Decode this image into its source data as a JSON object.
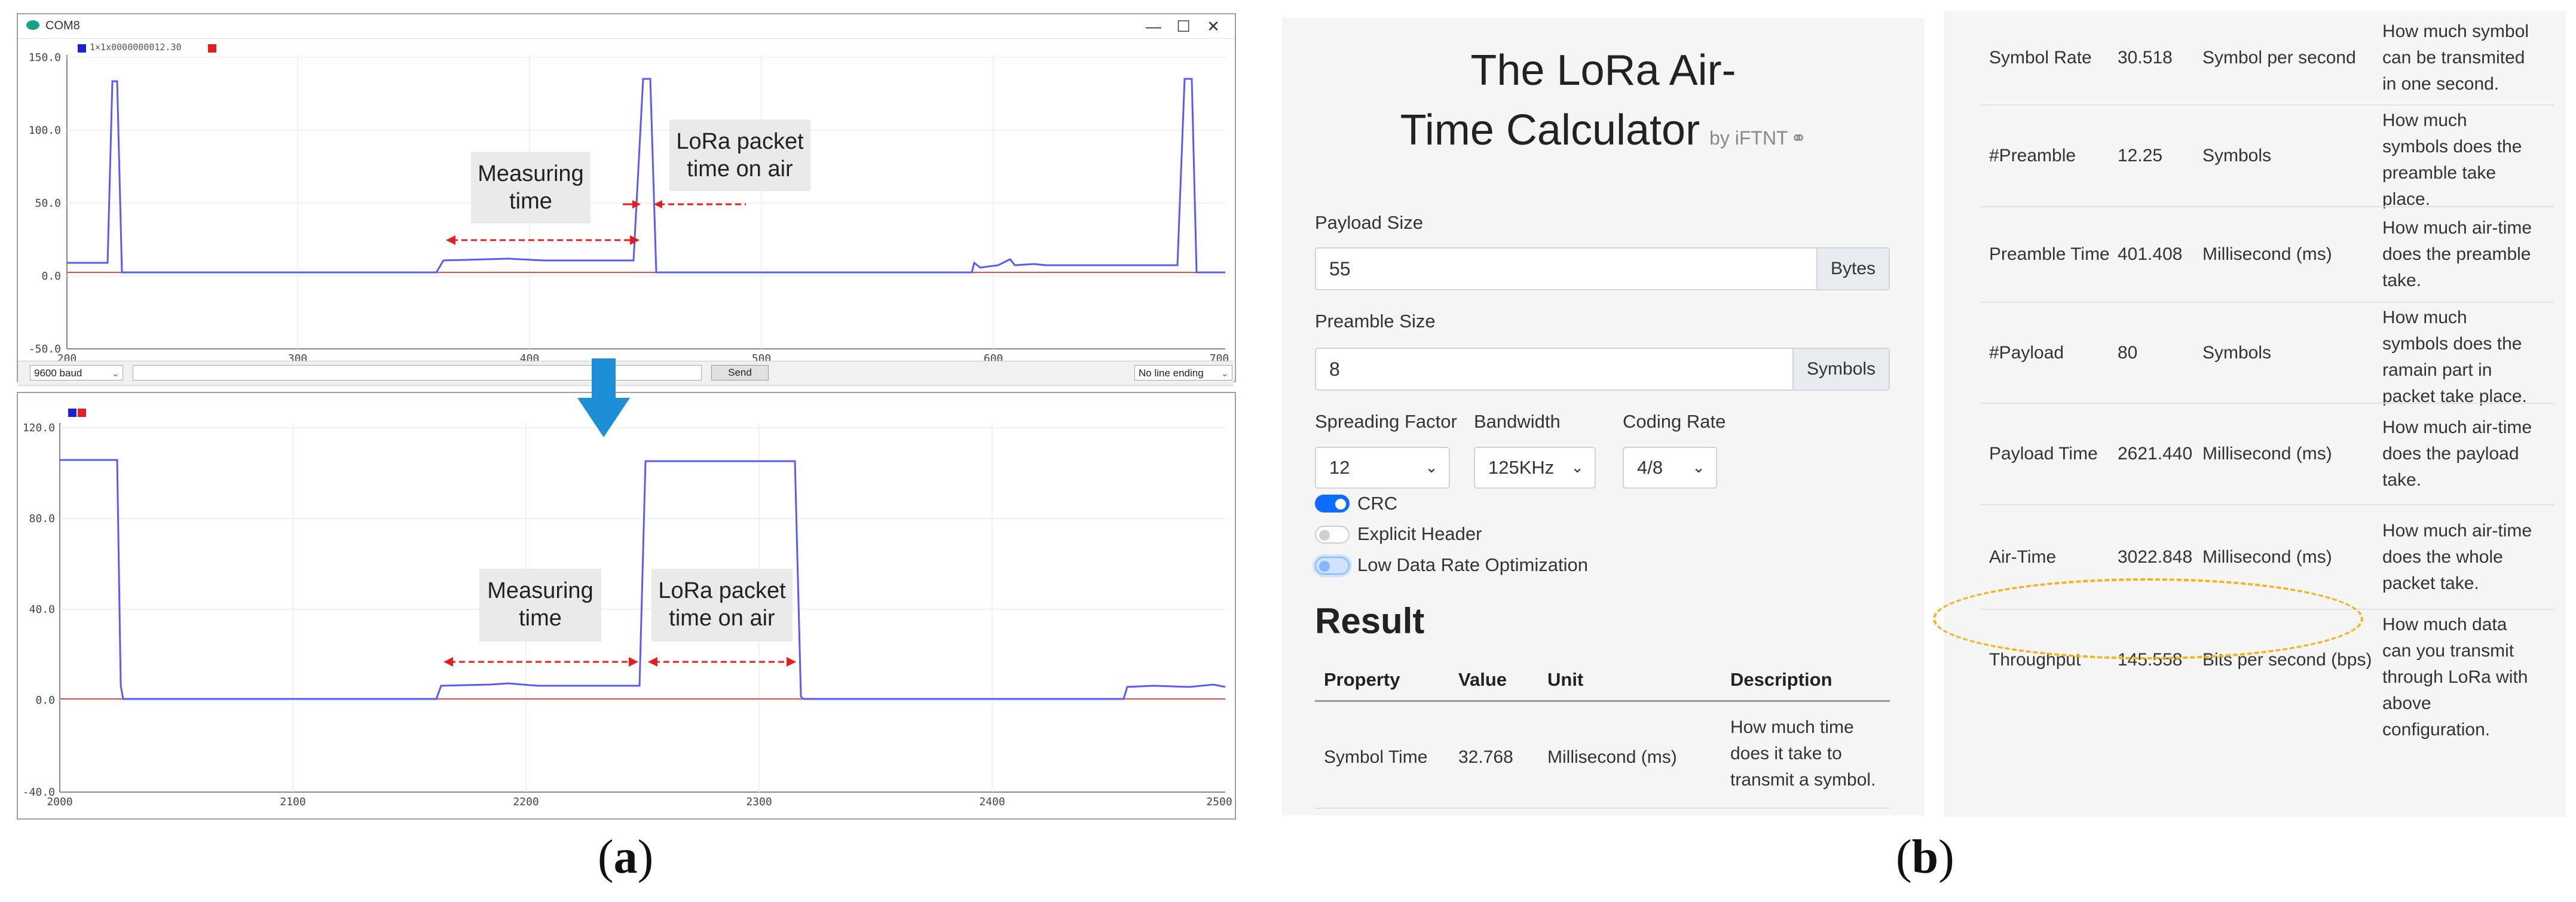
{
  "panel_a": {
    "caption": "a",
    "window_top": {
      "title": "COM8",
      "legend_text": "1×1x0000000012.30",
      "controls": {
        "minimize": "—",
        "maximize": "☐",
        "close": "✕"
      },
      "y_ticks": [
        "150.0",
        "100.0",
        "50.0",
        "0.0",
        "-50.0"
      ],
      "x_ticks": [
        "200",
        "300",
        "400",
        "500",
        "600",
        "700"
      ],
      "annotations": {
        "measuring": "Measuring\ntime",
        "lora": "LoRa packet\ntime on air"
      }
    },
    "status_bar": {
      "baud": "9600 baud",
      "send": "Send",
      "line_ending": "No line ending"
    },
    "window_bottom": {
      "y_ticks": [
        "120.0",
        "80.0",
        "40.0",
        "0.0",
        "-40.0"
      ],
      "x_ticks": [
        "2000",
        "2100",
        "2200",
        "2300",
        "2400",
        "2500"
      ],
      "annotations": {
        "measuring": "Measuring\ntime",
        "lora": "LoRa packet\ntime on air"
      }
    },
    "colors": {
      "signal": "#5b5bf0",
      "zero_line": "#e05050",
      "arrow": "#e02020",
      "down_arrow": "#1e8fd6"
    }
  },
  "panel_b": {
    "caption": "b",
    "title_line1": "The LoRa Air-",
    "title_line2": "Time Calculator",
    "byline": "by iFTNT",
    "payload": {
      "label": "Payload Size",
      "value": "55",
      "unit": "Bytes"
    },
    "preamble": {
      "label": "Preamble Size",
      "value": "8",
      "unit": "Symbols"
    },
    "spreading_factor": {
      "label": "Spreading Factor",
      "value": "12"
    },
    "bandwidth": {
      "label": "Bandwidth",
      "value": "125KHz"
    },
    "coding_rate": {
      "label": "Coding Rate",
      "value": "4/8"
    },
    "switches": {
      "crc": {
        "label": "CRC",
        "on": true
      },
      "explicit_header": {
        "label": "Explicit Header",
        "on": false
      },
      "ldro": {
        "label": "Low Data Rate Optimization",
        "on": true
      }
    },
    "result_heading": "Result",
    "table_headers": {
      "property": "Property",
      "value": "Value",
      "unit": "Unit",
      "description": "Description"
    },
    "rows_left": [
      {
        "property": "Symbol Time",
        "value": "32.768",
        "unit": "Millisecond (ms)",
        "description": "How much time\ndoes it take to\ntransmit a symbol."
      }
    ],
    "rows_right": [
      {
        "property": "Symbol Rate",
        "value": "30.518",
        "unit": "Symbol per second",
        "description": "How much symbol\ncan be transmited\nin one second."
      },
      {
        "property": "#Preamble",
        "value": "12.25",
        "unit": "Symbols",
        "description": "How much\nsymbols does the\npreamble take\nplace."
      },
      {
        "property": "Preamble Time",
        "value": "401.408",
        "unit": "Millisecond (ms)",
        "description": "How much air-time\ndoes the preamble\ntake."
      },
      {
        "property": "#Payload",
        "value": "80",
        "unit": "Symbols",
        "description": "How much\nsymbols does the\nramain part in\npacket take place."
      },
      {
        "property": "Payload Time",
        "value": "2621.440",
        "unit": "Millisecond (ms)",
        "description": "How much air-time\ndoes the payload\ntake."
      },
      {
        "property": "Air-Time",
        "value": "3022.848",
        "unit": "Millisecond (ms)",
        "description": "How much air-time\ndoes the whole\npacket take."
      },
      {
        "property": "Throughput",
        "value": "145.558",
        "unit": "Bits per second (bps)",
        "description": "How much data\ncan you transmit\nthrough LoRa with\nabove\nconfiguration."
      }
    ],
    "colors": {
      "switch_on": "#0d6efd",
      "highlight_ellipse": "#f2b418"
    }
  }
}
